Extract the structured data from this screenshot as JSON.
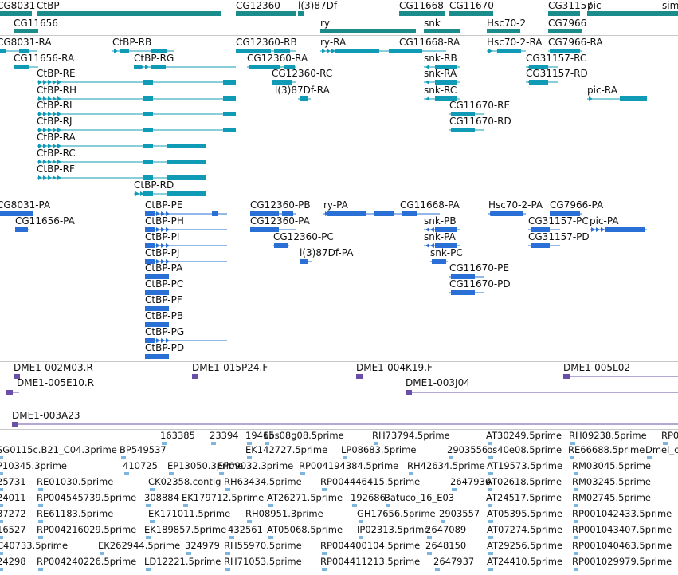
{
  "colors": {
    "gene": "#1a8c8c",
    "transcript_ra": "#0f9bb5",
    "transcript_pa": "#2a6fd6",
    "clone": "#6a4fa8",
    "est": "#7db5df",
    "separator": "#c8c8c8"
  },
  "genes": [
    "CG8031",
    "CtBP",
    "CG12360",
    "l(3)87Df",
    "CG11668",
    "CG11670",
    "CG31157",
    "pic",
    "sim",
    "CG11656",
    "ry",
    "snk",
    "Hsc70-2",
    "CG7966"
  ],
  "transcripts_ra": [
    "CG8031-RA",
    "CtBP-RB",
    "CG12360-RB",
    "ry-RA",
    "CG11668-RA",
    "Hsc70-2-RA",
    "CG7966-RA",
    "CG11656-RA",
    "CtBP-RG",
    "CG12360-RA",
    "snk-RB",
    "CG31157-RC",
    "CtBP-RE",
    "CG12360-RC",
    "snk-RA",
    "CG31157-RD",
    "CtBP-RH",
    "l(3)87Df-RA",
    "snk-RC",
    "pic-RA",
    "CtBP-RI",
    "CG11670-RE",
    "CtBP-RJ",
    "CG11670-RD",
    "CtBP-RA",
    "CtBP-RC",
    "CtBP-RF",
    "CtBP-RD"
  ],
  "transcripts_pa": [
    "CG8031-PA",
    "CtBP-PE",
    "CG12360-PB",
    "ry-PA",
    "CG11668-PA",
    "Hsc70-2-PA",
    "CG7966-PA",
    "CG11656-PA",
    "CtBP-PH",
    "CG12360-PA",
    "snk-PB",
    "CG31157-PC",
    "pic-PA",
    "CtBP-PI",
    "CG12360-PC",
    "snk-PA",
    "CG31157-PD",
    "CtBP-PJ",
    "l(3)87Df-PA",
    "snk-PC",
    "CtBP-PA",
    "CG11670-PE",
    "CtBP-PC",
    "CG11670-PD",
    "CtBP-PF",
    "CtBP-PB",
    "CtBP-PG",
    "CtBP-PD"
  ],
  "clones": [
    "DME1-002M03.R",
    "DME1-015P24.F",
    "DME1-004K19.F",
    "DME1-005L02",
    "DME1-005E10.R",
    "DME1-003J04",
    "DME1-003A23"
  ],
  "ests": [
    "163385",
    "23394",
    "19465",
    "1bs08g08.5prime",
    "RH73794.5prime",
    "AT30249.5prime",
    "RH09238.5prime",
    "RP0",
    "SG0115c.B21_C04.3prime",
    "BP549537",
    "EK142727.5prime",
    "LP08683.5prime",
    "2903556",
    "bs40e08.5prime",
    "RE66688.5prime",
    "Dmel_c",
    "P10345.3prime",
    "410725",
    "EP13050.3prime",
    "EP09032.3prime",
    "RP004194384.5prime",
    "RH42634.5prime",
    "AT19573.5prime",
    "RM03045.5prime",
    "25731",
    "RE01030.5prime",
    "CK02358.contig",
    "RH63434.5prime",
    "RP004446415.5prime",
    "2647936",
    "AT02618.5prime",
    "RM03245.5prime",
    "24011",
    "RP004545739.5prime",
    "308884",
    "EK179712.5prime",
    "AT26271.5prime",
    "192686",
    "Batuco_16_E03",
    "AT24517.5prime",
    "RM02745.5prime",
    "87272",
    "RE61183.5prime",
    "EK171011.5prime",
    "RH08951.3prime",
    "GH17656.5prime",
    "2903557",
    "AT05395.5prime",
    "RP001042433.5prime",
    "16527",
    "RP004216029.5prime",
    "EK189857.5prime",
    "432561",
    "AT05068.5prime",
    "IP02313.5prime",
    "2647089",
    "AT07274.5prime",
    "RP001043407.5prime",
    "C40733.5prime",
    "EK262944.5prime",
    "324979",
    "RH55970.5prime",
    "RP004400104.5prime",
    "2648150",
    "AT29256.5prime",
    "RP001040463.5prime",
    "24298",
    "RP004240226.5prime",
    "LD12221.5prime",
    "RH71053.5prime",
    "RP004411213.5prime",
    "2647937",
    "AT24410.5prime",
    "RP001029979.5prime"
  ]
}
